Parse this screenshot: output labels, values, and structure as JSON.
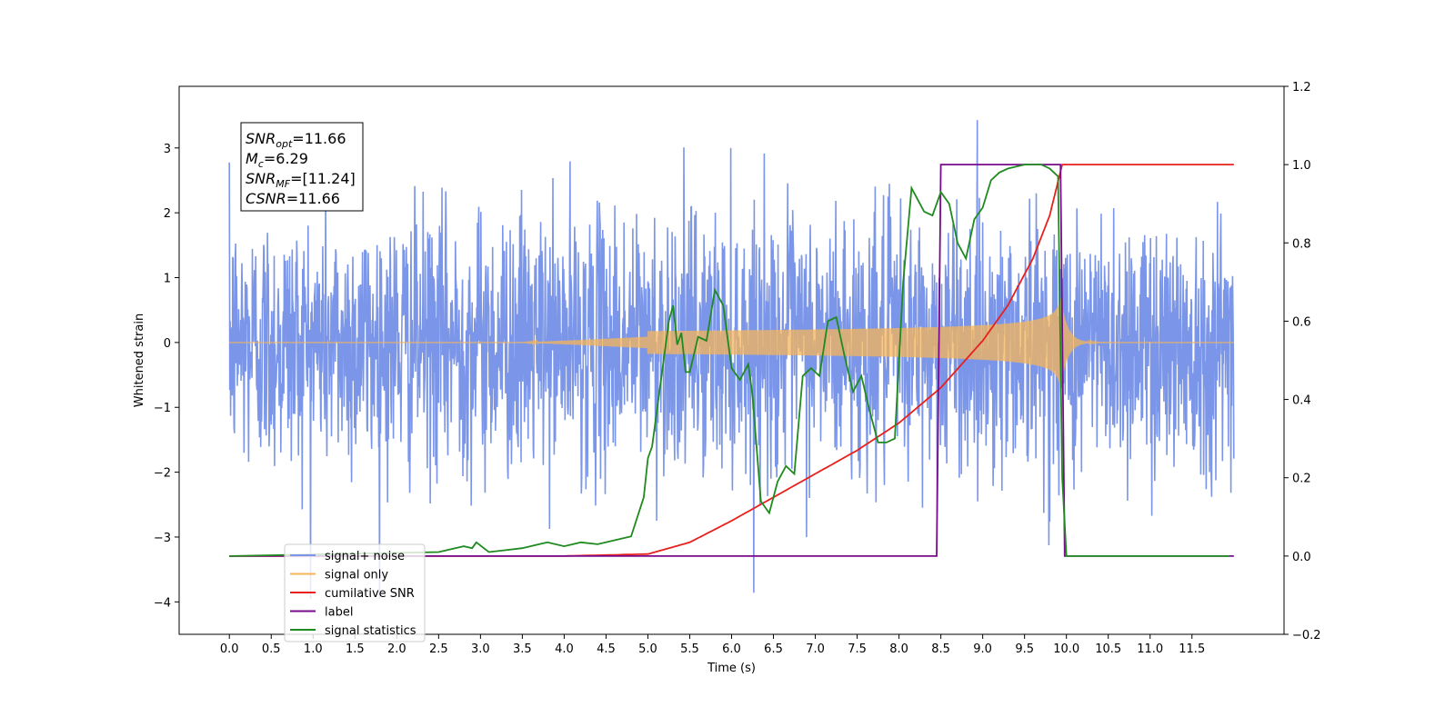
{
  "chart_data": {
    "type": "line",
    "xlabel": "Time (s)",
    "ylabel_left": "Whitened strain",
    "ylabel_right": "",
    "xlim": [
      -0.6,
      12.6
    ],
    "ylim_left": [
      -4.5,
      3.95
    ],
    "ylim_right": [
      -0.2,
      1.2
    ],
    "x_ticks": [
      "0.0",
      "0.5",
      "1.0",
      "1.5",
      "2.0",
      "2.5",
      "3.0",
      "3.5",
      "4.0",
      "4.5",
      "5.0",
      "5.5",
      "6.0",
      "6.5",
      "7.0",
      "7.5",
      "8.0",
      "8.5",
      "9.0",
      "9.5",
      "10.0",
      "10.5",
      "11.0",
      "11.5"
    ],
    "y_ticks_left": [
      "3",
      "2",
      "1",
      "0",
      "−1",
      "−2",
      "−3",
      "−4"
    ],
    "y_ticks_right": [
      "1.2",
      "1.0",
      "0.8",
      "0.6",
      "0.4",
      "0.2",
      "0.0",
      "−0.2"
    ],
    "grid": false,
    "legend_position": "lower-left",
    "stats_box": {
      "lines": [
        {
          "sym": "SNR",
          "sub": "opt",
          "value": "=11.66"
        },
        {
          "sym": "M",
          "sub": "c",
          "value": "=6.29"
        },
        {
          "sym": "SNR",
          "sub": "MF",
          "value": "=[11.24]"
        },
        {
          "sym": "CSNR",
          "sub": "",
          "value": "=11.66"
        }
      ]
    },
    "series": [
      {
        "name": "signal+ noise",
        "axis": "left",
        "color": "#7b96e8",
        "description_values": "white noise, std ~1.0, x from 0 to 12.0 s",
        "x_range": [
          0.0,
          12.0
        ],
        "noise_std": 1.0
      },
      {
        "name": "signal only",
        "axis": "left",
        "color": "#f5b45a",
        "x_range": [
          0.0,
          12.0
        ],
        "chirp_peak_time": 9.93,
        "chirp_peak_amplitude": 0.7
      },
      {
        "name": "cumilative SNR",
        "axis": "right",
        "color": "#e8201c",
        "x": [
          0.0,
          4.0,
          5.0,
          5.5,
          6.0,
          6.5,
          7.0,
          7.5,
          8.0,
          8.5,
          9.0,
          9.3,
          9.6,
          9.8,
          9.95,
          12.0
        ],
        "values": [
          0.0,
          0.0,
          0.005,
          0.035,
          0.09,
          0.15,
          0.21,
          0.27,
          0.34,
          0.43,
          0.55,
          0.64,
          0.76,
          0.87,
          1.0,
          1.0
        ]
      },
      {
        "name": "label",
        "axis": "right",
        "color": "#7a0a8c",
        "x": [
          0.0,
          8.45,
          8.5,
          9.93,
          9.98,
          12.0
        ],
        "values": [
          0.0,
          0.0,
          1.0,
          1.0,
          0.0,
          0.0
        ]
      },
      {
        "name": "signal statistics",
        "axis": "right",
        "color": "#1f8a1f",
        "x": [
          0.0,
          2.5,
          2.8,
          2.9,
          2.95,
          3.1,
          3.3,
          3.5,
          3.7,
          3.8,
          4.0,
          4.2,
          4.4,
          4.8,
          4.95,
          5.0,
          5.05,
          5.15,
          5.25,
          5.3,
          5.35,
          5.4,
          5.45,
          5.5,
          5.6,
          5.7,
          5.8,
          5.9,
          6.0,
          6.1,
          6.2,
          6.25,
          6.35,
          6.45,
          6.55,
          6.65,
          6.75,
          6.85,
          6.95,
          7.05,
          7.15,
          7.25,
          7.35,
          7.45,
          7.55,
          7.65,
          7.75,
          7.85,
          7.95,
          8.05,
          8.15,
          8.2,
          8.3,
          8.4,
          8.5,
          8.6,
          8.7,
          8.8,
          8.9,
          9.0,
          9.1,
          9.2,
          9.3,
          9.5,
          9.7,
          9.8,
          9.85,
          9.9,
          9.95,
          10.0,
          11.0,
          11.95
        ],
        "values": [
          0.0,
          0.01,
          0.025,
          0.02,
          0.035,
          0.01,
          0.015,
          0.02,
          0.03,
          0.035,
          0.025,
          0.035,
          0.03,
          0.05,
          0.15,
          0.25,
          0.28,
          0.44,
          0.6,
          0.64,
          0.54,
          0.57,
          0.47,
          0.47,
          0.56,
          0.55,
          0.68,
          0.64,
          0.48,
          0.45,
          0.49,
          0.41,
          0.14,
          0.11,
          0.19,
          0.23,
          0.21,
          0.46,
          0.48,
          0.46,
          0.6,
          0.61,
          0.51,
          0.42,
          0.46,
          0.37,
          0.29,
          0.29,
          0.3,
          0.7,
          0.94,
          0.92,
          0.88,
          0.87,
          0.93,
          0.9,
          0.8,
          0.76,
          0.86,
          0.89,
          0.96,
          0.98,
          0.99,
          1.0,
          1.0,
          0.99,
          0.98,
          0.97,
          0.2,
          0.0,
          0.0,
          0.0
        ]
      }
    ],
    "legend": [
      {
        "name": "signal+ noise",
        "color": "#7b96e8"
      },
      {
        "name": "signal only",
        "color": "#f5b45a"
      },
      {
        "name": "cumilative SNR",
        "color": "#e8201c"
      },
      {
        "name": "label",
        "color": "#7a0a8c"
      },
      {
        "name": "signal statistics",
        "color": "#1f8a1f"
      }
    ]
  }
}
